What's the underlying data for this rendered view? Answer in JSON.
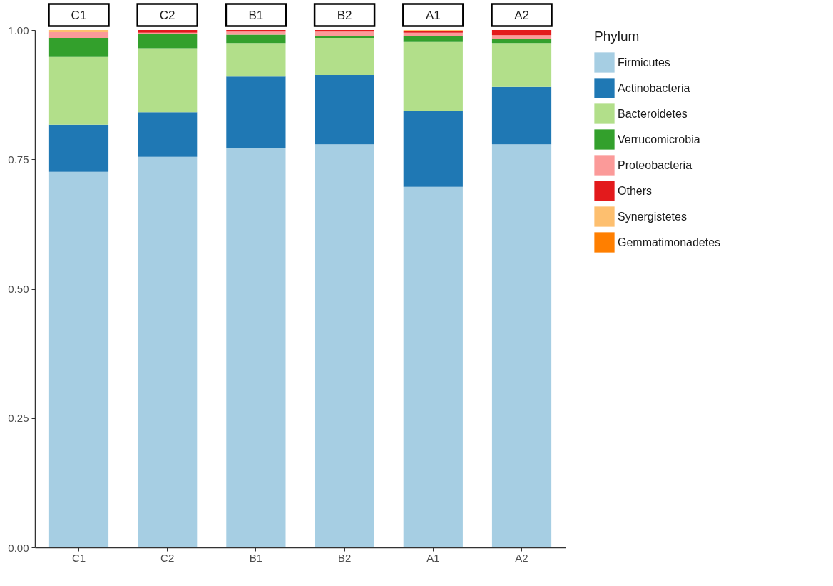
{
  "chart_data": {
    "type": "bar",
    "stacked": true,
    "categories": [
      "C1",
      "C2",
      "B1",
      "B2",
      "A1",
      "A2"
    ],
    "ylim": [
      0,
      1
    ],
    "yticks": [
      {
        "value": 0,
        "label": "0.00"
      },
      {
        "value": 0.25,
        "label": "0.25"
      },
      {
        "value": 0.5,
        "label": "0.50"
      },
      {
        "value": 0.75,
        "label": "0.75"
      },
      {
        "value": 1,
        "label": "1.00"
      }
    ],
    "legend": "right",
    "legend_title": "Phylum",
    "series": [
      {
        "name": "Firmicutes",
        "color": "#a6cee3",
        "values": [
          0.726,
          0.755,
          0.772,
          0.779,
          0.697,
          0.779
        ]
      },
      {
        "name": "Actinobacteria",
        "color": "#1f78b4",
        "values": [
          0.091,
          0.086,
          0.138,
          0.134,
          0.146,
          0.111
        ]
      },
      {
        "name": "Bacteroidetes",
        "color": "#b2df8a",
        "values": [
          0.131,
          0.124,
          0.065,
          0.072,
          0.134,
          0.085
        ]
      },
      {
        "name": "Verrucomicrobia",
        "color": "#33a02c",
        "values": [
          0.037,
          0.028,
          0.016,
          0.004,
          0.011,
          0.008
        ]
      },
      {
        "name": "Proteobacteria",
        "color": "#fb9a99",
        "values": [
          0.011,
          0.002,
          0.006,
          0.008,
          0.007,
          0.007
        ]
      },
      {
        "name": "Others",
        "color": "#e31a1c",
        "values": [
          0,
          0.005,
          0.003,
          0.003,
          0.003,
          0.01
        ]
      },
      {
        "name": "Synergistetes",
        "color": "#fdbf6f",
        "values": [
          0.004,
          0,
          0,
          0,
          0.002,
          0
        ]
      },
      {
        "name": "Gemmatimonadetes",
        "color": "#ff7f00",
        "values": [
          0,
          0,
          0,
          0,
          0,
          0
        ]
      }
    ]
  }
}
